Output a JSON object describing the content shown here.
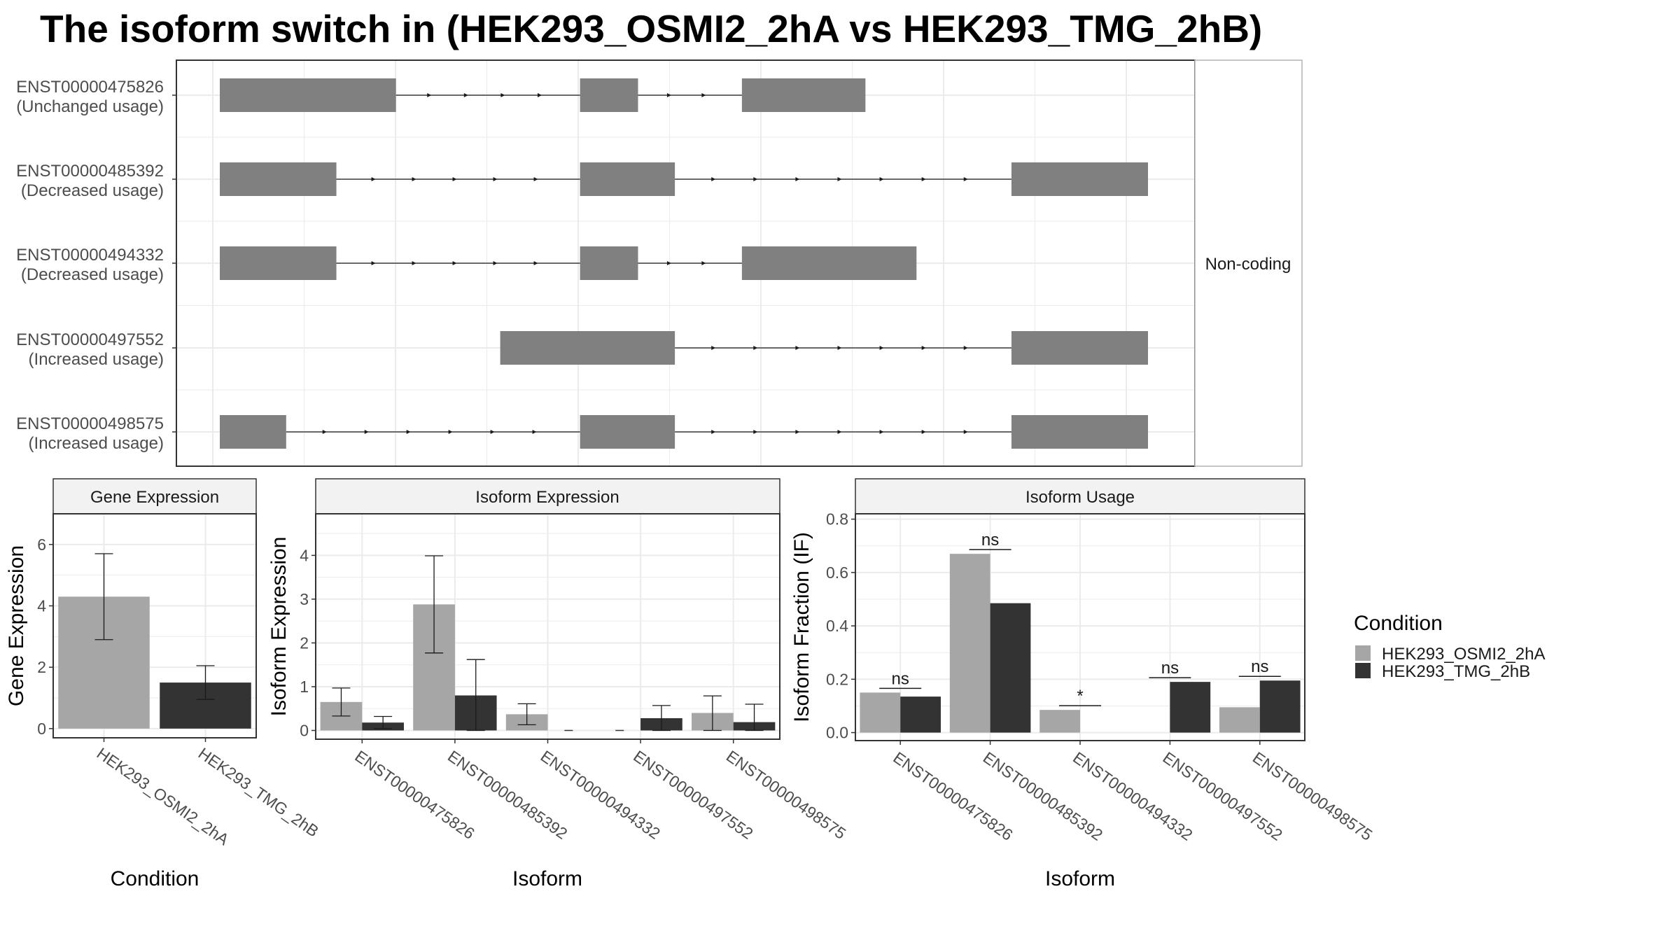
{
  "title": "The isoform switch in  (HEK293_OSMI2_2hA vs HEK293_TMG_2hB)",
  "colors": {
    "condition_a": "#a6a6a6",
    "condition_b": "#333333",
    "exon": "#808080",
    "grid": "#ebebeb",
    "panel_border": "#333333"
  },
  "chart_data": [
    {
      "type": "isoform-structure",
      "side_strip": "Non-coding",
      "isoforms": [
        {
          "name": "ENST00000475826",
          "usage": "(Unchanged usage)",
          "exons": [
            [
              0.0,
              0.1898
            ],
            [
              0.3881,
              0.4506
            ],
            [
              0.5625,
              0.6956
            ]
          ]
        },
        {
          "name": "ENST00000485392",
          "usage": "(Decreased usage)",
          "exons": [
            [
              0.0,
              0.1256
            ],
            [
              0.3881,
              0.4903
            ],
            [
              0.8529,
              1.0
            ]
          ]
        },
        {
          "name": "ENST00000494332",
          "usage": "(Decreased usage)",
          "exons": [
            [
              0.0,
              0.1256
            ],
            [
              0.3881,
              0.4506
            ],
            [
              0.5625,
              0.7506
            ]
          ]
        },
        {
          "name": "ENST00000497552",
          "usage": "(Increased usage)",
          "exons": [
            [
              0.3021,
              0.4903
            ],
            [
              0.8529,
              1.0
            ]
          ]
        },
        {
          "name": "ENST00000498575",
          "usage": "(Increased usage)",
          "exons": [
            [
              0.0,
              0.0715
            ],
            [
              0.3881,
              0.4903
            ],
            [
              0.8529,
              1.0
            ]
          ]
        }
      ]
    },
    {
      "type": "bar",
      "panel_title": "Gene Expression",
      "xlabel": "Condition",
      "ylabel": "Gene Expression",
      "categories": [
        "HEK293_OSMI2_2hA",
        "HEK293_TMG_2hB"
      ],
      "values": [
        4.3,
        1.5
      ],
      "errors": [
        [
          2.9,
          5.7
        ],
        [
          0.95,
          2.05
        ]
      ],
      "yticks": [
        0,
        2,
        4,
        6
      ],
      "ylim": [
        -0.3,
        7.0
      ]
    },
    {
      "type": "bar",
      "panel_title": "Isoform Expression",
      "xlabel": "Isoform",
      "ylabel": "Isoform Expression",
      "categories": [
        "ENST00000475826",
        "ENST00000485392",
        "ENST00000494332",
        "ENST00000497552",
        "ENST00000498575"
      ],
      "series": [
        {
          "values": [
            0.65,
            2.88,
            0.37,
            0.0,
            0.4
          ],
          "errors": [
            [
              0.33,
              0.97
            ],
            [
              1.77,
              3.99
            ],
            [
              0.13,
              0.61
            ],
            null,
            [
              0.0,
              0.79
            ]
          ]
        },
        {
          "values": [
            0.18,
            0.8,
            0.0,
            0.28,
            0.19
          ],
          "errors": [
            [
              0.04,
              0.32
            ],
            [
              0.0,
              1.62
            ],
            null,
            [
              0.0,
              0.57
            ],
            [
              0.0,
              0.6
            ]
          ]
        }
      ],
      "yticks": [
        0,
        1,
        2,
        3,
        4
      ],
      "ylim": [
        -0.2,
        4.95
      ]
    },
    {
      "type": "bar",
      "panel_title": "Isoform Usage",
      "xlabel": "Isoform",
      "ylabel": "Isoform Fraction (IF)",
      "categories": [
        "ENST00000475826",
        "ENST00000485392",
        "ENST00000494332",
        "ENST00000497552",
        "ENST00000498575"
      ],
      "series": [
        {
          "values": [
            0.15,
            0.67,
            0.085,
            0.0,
            0.095
          ]
        },
        {
          "values": [
            0.135,
            0.485,
            0.0,
            0.19,
            0.195
          ]
        }
      ],
      "significance": [
        "ns",
        "ns",
        "*",
        "ns",
        "ns"
      ],
      "yticks": [
        "0.0",
        "0.2",
        "0.4",
        "0.6",
        "0.8"
      ],
      "ylim": [
        -0.03,
        0.82
      ]
    }
  ],
  "legend": {
    "title": "Condition",
    "items": [
      "HEK293_OSMI2_2hA",
      "HEK293_TMG_2hB"
    ]
  }
}
